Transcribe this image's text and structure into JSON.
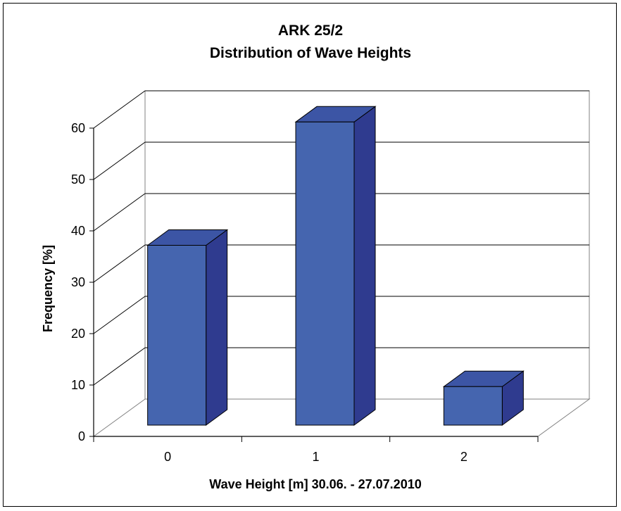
{
  "chart_data": {
    "type": "bar",
    "title": "ARK 25/2",
    "subtitle": "Distribution of Wave Heights",
    "xlabel": "Wave Height [m] 30.06. - 27.07.2010",
    "ylabel": "Frequency [%]",
    "categories": [
      "0",
      "1",
      "2"
    ],
    "values": [
      35,
      59,
      7.5
    ],
    "ylim": [
      0,
      60
    ],
    "yticks": [
      "0",
      "10",
      "20",
      "30",
      "40",
      "50",
      "60"
    ],
    "grid": true,
    "legend": "none",
    "three_d": true,
    "colors": {
      "bar_front": "#4565AF",
      "bar_side": "#2F3B8F",
      "bar_top": "#3C55A5",
      "grid": "#000000"
    }
  }
}
